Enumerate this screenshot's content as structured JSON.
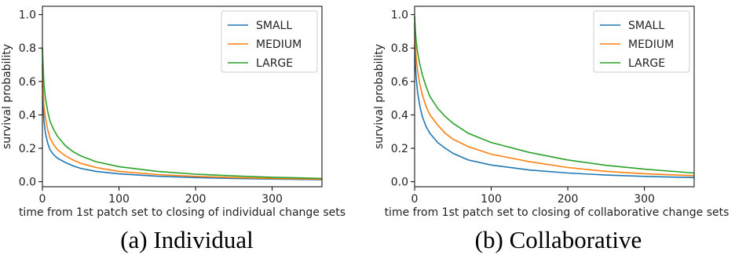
{
  "chart_data": [
    {
      "type": "line",
      "caption": "(a) Individual",
      "xlabel": "time from 1st patch set to closing of individual change sets",
      "ylabel": "survival probability",
      "xlim": [
        0,
        365
      ],
      "ylim": [
        -0.03,
        1.05
      ],
      "xticks": [
        0,
        100,
        200,
        300
      ],
      "yticks": [
        0.0,
        0.2,
        0.4,
        0.6,
        0.8,
        1.0
      ],
      "legend": "top-right",
      "grid": false,
      "series": [
        {
          "name": "SMALL",
          "color": "#1f77b4",
          "x": [
            0,
            1,
            2,
            4,
            7,
            10,
            15,
            20,
            30,
            40,
            50,
            70,
            100,
            150,
            200,
            250,
            300,
            365
          ],
          "y": [
            0.58,
            0.45,
            0.36,
            0.29,
            0.23,
            0.19,
            0.16,
            0.14,
            0.115,
            0.095,
            0.08,
            0.062,
            0.047,
            0.033,
            0.025,
            0.02,
            0.016,
            0.012
          ]
        },
        {
          "name": "MEDIUM",
          "color": "#ff7f0e",
          "x": [
            0,
            1,
            2,
            4,
            7,
            10,
            15,
            20,
            30,
            40,
            50,
            70,
            100,
            150,
            200,
            250,
            300,
            365
          ],
          "y": [
            0.7,
            0.55,
            0.45,
            0.38,
            0.31,
            0.26,
            0.22,
            0.19,
            0.155,
            0.13,
            0.11,
            0.085,
            0.062,
            0.043,
            0.032,
            0.025,
            0.02,
            0.015
          ]
        },
        {
          "name": "LARGE",
          "color": "#2ca02c",
          "x": [
            0,
            1,
            2,
            4,
            7,
            10,
            15,
            20,
            30,
            40,
            50,
            70,
            100,
            150,
            200,
            250,
            300,
            365
          ],
          "y": [
            0.8,
            0.68,
            0.58,
            0.5,
            0.42,
            0.36,
            0.31,
            0.27,
            0.215,
            0.18,
            0.155,
            0.12,
            0.09,
            0.062,
            0.045,
            0.035,
            0.027,
            0.02
          ]
        }
      ]
    },
    {
      "type": "line",
      "caption": "(b) Collaborative",
      "xlabel": "time from 1st patch set to closing of collaborative change sets",
      "ylabel": "survival probability",
      "xlim": [
        0,
        365
      ],
      "ylim": [
        -0.03,
        1.05
      ],
      "xticks": [
        0,
        100,
        200,
        300
      ],
      "yticks": [
        0.0,
        0.2,
        0.4,
        0.6,
        0.8,
        1.0
      ],
      "legend": "top-right",
      "grid": false,
      "series": [
        {
          "name": "SMALL",
          "color": "#1f77b4",
          "x": [
            0,
            1,
            2,
            4,
            7,
            10,
            15,
            20,
            30,
            40,
            50,
            70,
            100,
            150,
            200,
            250,
            300,
            365
          ],
          "y": [
            0.82,
            0.7,
            0.62,
            0.53,
            0.45,
            0.39,
            0.33,
            0.29,
            0.235,
            0.2,
            0.17,
            0.13,
            0.1,
            0.07,
            0.052,
            0.04,
            0.032,
            0.025
          ]
        },
        {
          "name": "MEDIUM",
          "color": "#ff7f0e",
          "x": [
            0,
            1,
            2,
            4,
            7,
            10,
            15,
            20,
            30,
            40,
            50,
            70,
            100,
            150,
            200,
            250,
            300,
            365
          ],
          "y": [
            0.95,
            0.82,
            0.74,
            0.66,
            0.58,
            0.52,
            0.45,
            0.4,
            0.34,
            0.29,
            0.255,
            0.21,
            0.165,
            0.12,
            0.085,
            0.062,
            0.048,
            0.036
          ]
        },
        {
          "name": "LARGE",
          "color": "#2ca02c",
          "x": [
            0,
            1,
            2,
            4,
            7,
            10,
            15,
            20,
            30,
            40,
            50,
            70,
            100,
            150,
            200,
            250,
            300,
            365
          ],
          "y": [
            0.99,
            0.9,
            0.84,
            0.77,
            0.7,
            0.64,
            0.57,
            0.51,
            0.44,
            0.39,
            0.35,
            0.29,
            0.235,
            0.175,
            0.13,
            0.098,
            0.075,
            0.052
          ]
        }
      ]
    }
  ]
}
